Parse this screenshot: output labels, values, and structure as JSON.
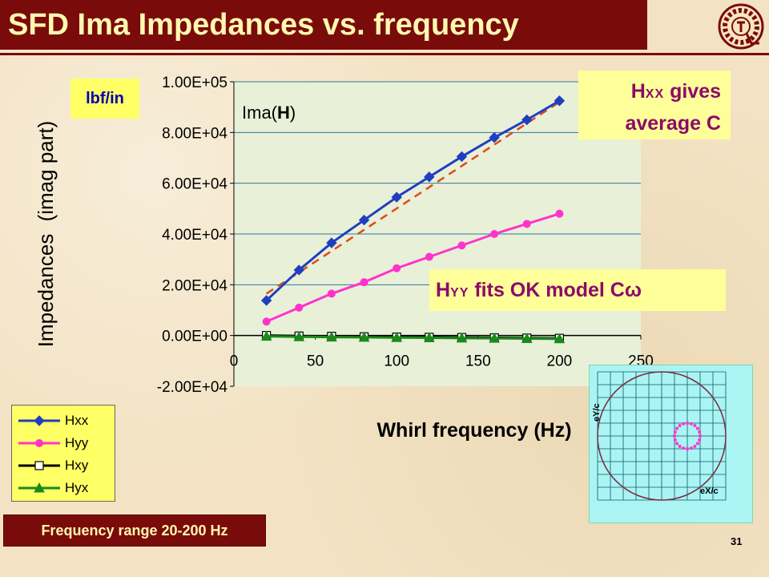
{
  "title": "SFD Ima Impedances vs. frequency",
  "unit_label": "lbf/in",
  "plot_label": {
    "prefix": "Ima(",
    "bold": "H",
    "suffix": ")"
  },
  "callouts": {
    "hxx": {
      "main": "H",
      "sub": "XX",
      "rest": " gives",
      "line2": "average C"
    },
    "hyy": {
      "main": "H",
      "sub": "YY",
      "rest": " fits OK model C",
      "symbol": "ω"
    }
  },
  "freq_range": "Frequency range 20-200 Hz",
  "page_number": "31",
  "orbit": {
    "ylabel": "eY/c",
    "xlabel": "eX/c"
  },
  "chart_data": {
    "type": "line",
    "title": "Ima(H)",
    "xlabel": "Whirl frequency (Hz)",
    "ylabel_main": "Impedances",
    "ylabel_paren": "(imag part)",
    "xlim": [
      0,
      250
    ],
    "ylim": [
      -20000,
      100000
    ],
    "x_ticks": [
      0,
      50,
      100,
      150,
      200,
      250
    ],
    "y_ticks": [
      -20000,
      0,
      20000,
      40000,
      60000,
      80000,
      100000
    ],
    "y_tick_labels": [
      "-2.00E+04",
      "0.00E+00",
      "2.00E+04",
      "4.00E+04",
      "6.00E+04",
      "8.00E+04",
      "1.00E+05"
    ],
    "grid": "horizontal",
    "legend_position": "bottom-left",
    "x": [
      20,
      40,
      60,
      80,
      100,
      120,
      140,
      160,
      180,
      200
    ],
    "series": [
      {
        "name": "Hxx",
        "color": "#1f3fbf",
        "marker": "diamond",
        "values": [
          13800,
          25800,
          36500,
          45500,
          54500,
          62500,
          70500,
          78000,
          85000,
          92500
        ]
      },
      {
        "name": "Hyy",
        "color": "#ff33cc",
        "marker": "circle",
        "values": [
          5500,
          11000,
          16500,
          21000,
          26500,
          31000,
          35500,
          40000,
          44000,
          48000
        ]
      },
      {
        "name": "Hxy",
        "color": "#000000",
        "marker": "square",
        "values": [
          0,
          -200,
          -300,
          -500,
          -600,
          -700,
          -800,
          -900,
          -1000,
          -1100
        ]
      },
      {
        "name": "Hyx",
        "color": "#1a8a1a",
        "marker": "triangle",
        "values": [
          -300,
          -500,
          -600,
          -700,
          -800,
          -900,
          -1000,
          -1100,
          -1200,
          -1300
        ]
      }
    ],
    "fit_line": {
      "color": "#e04a1a",
      "x": [
        20,
        200
      ],
      "values": [
        16500,
        92000
      ]
    }
  }
}
